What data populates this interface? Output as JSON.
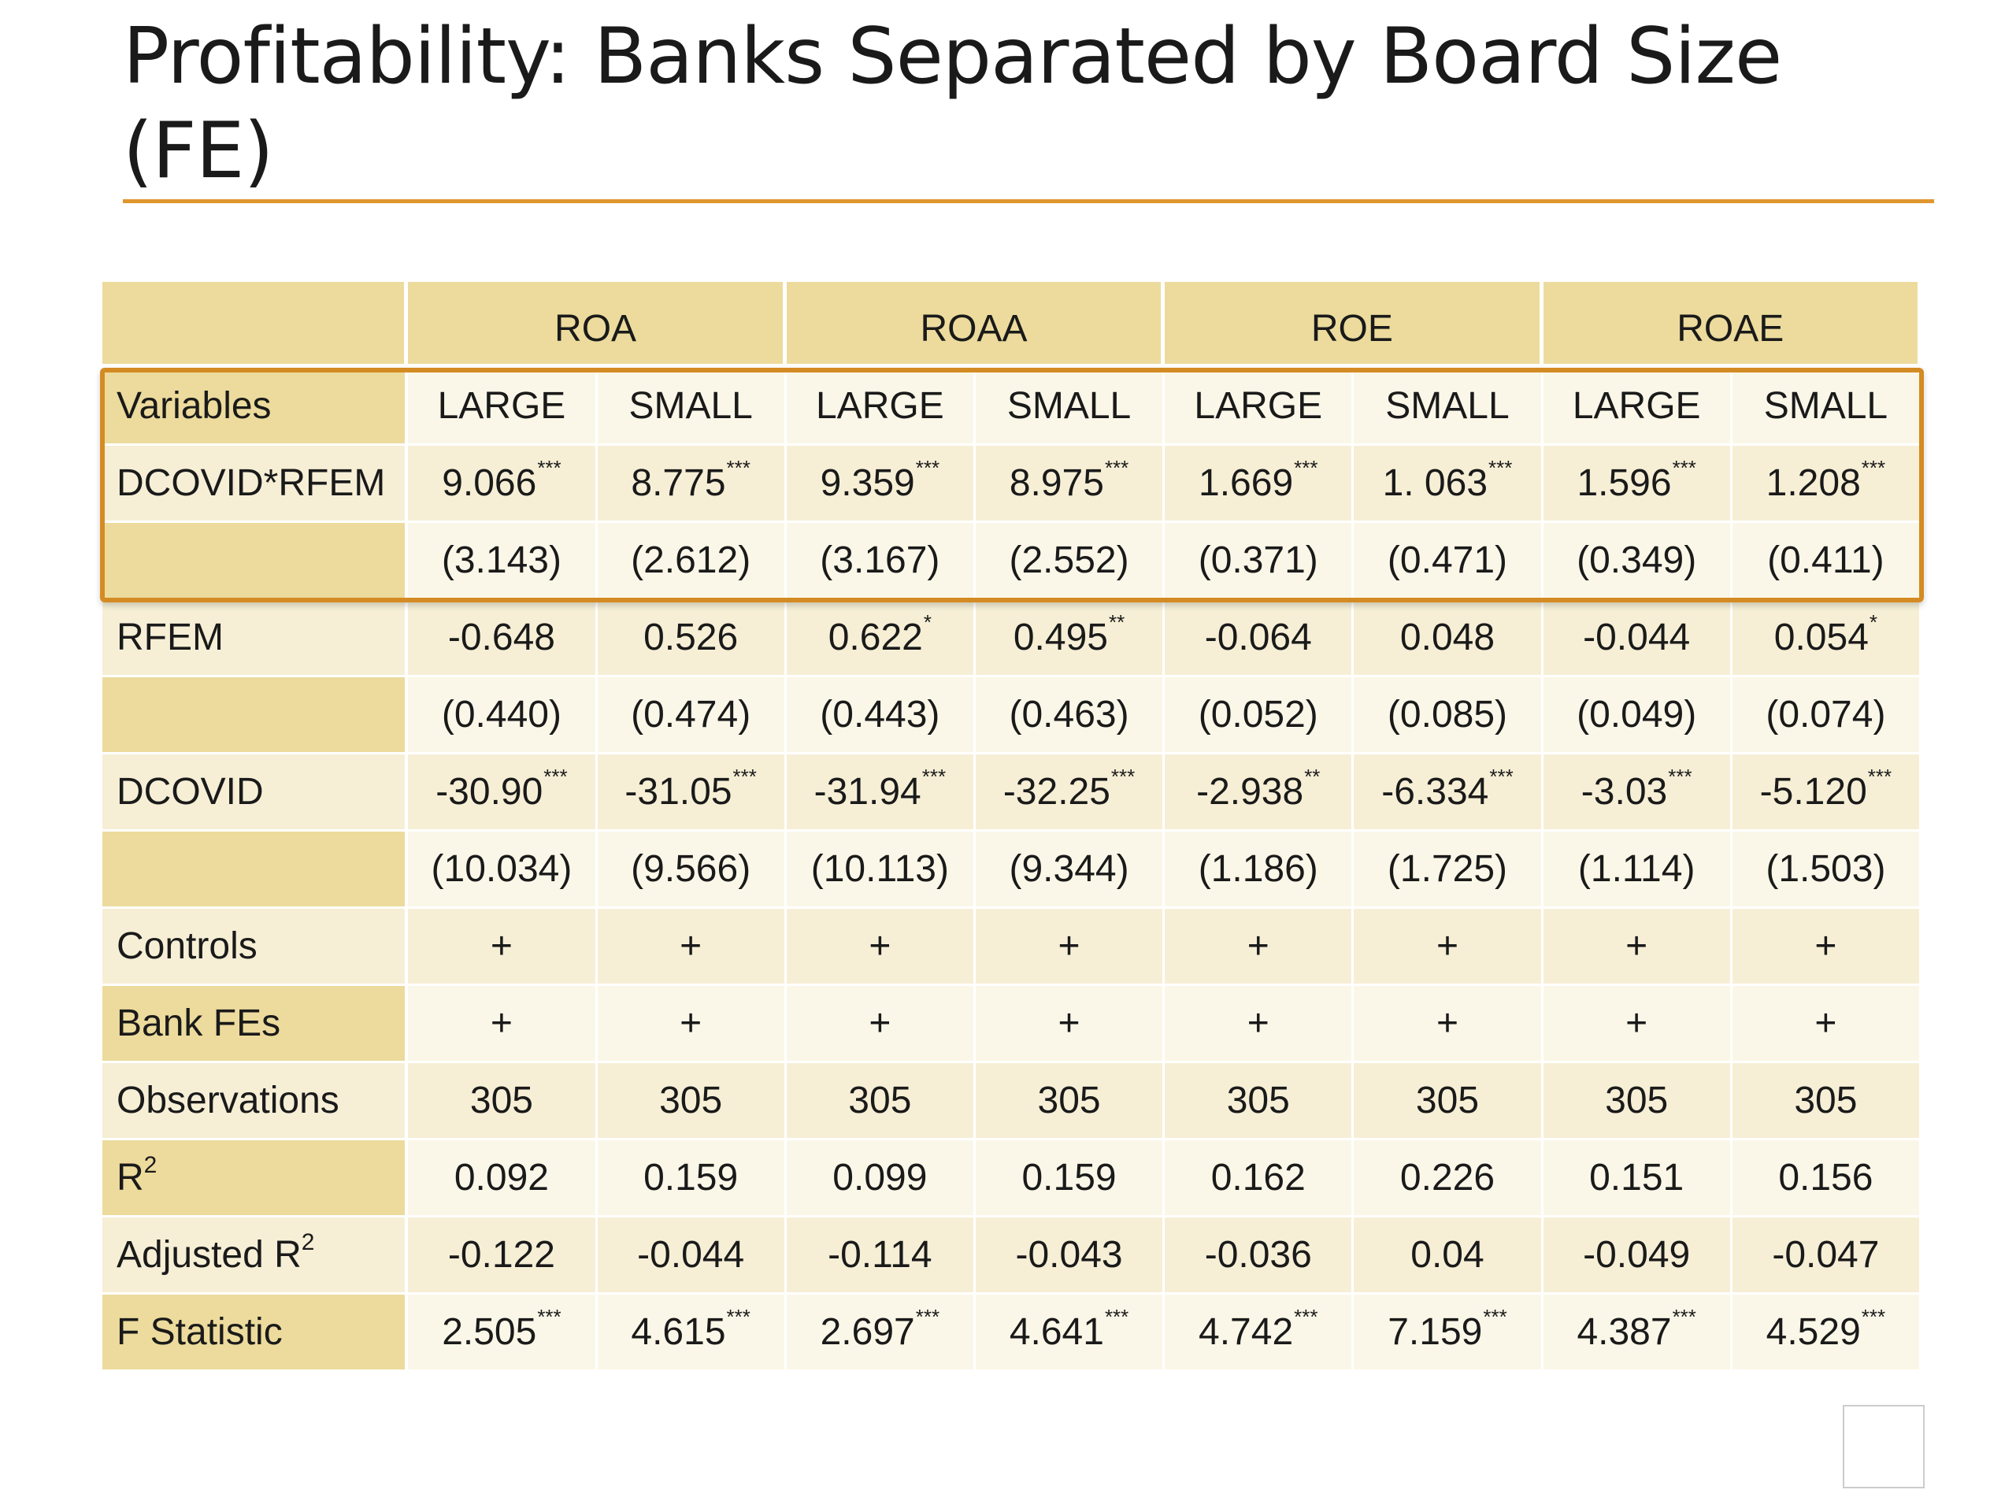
{
  "slide": {
    "title": "Profitability: Banks Separated by Board Size (FE)"
  },
  "table": {
    "groups": [
      "ROA",
      "ROAA",
      "ROE",
      "ROAE"
    ],
    "rows": [
      {
        "label": "Variables",
        "cells": [
          {
            "v": "LARGE"
          },
          {
            "v": "SMALL"
          },
          {
            "v": "LARGE"
          },
          {
            "v": "SMALL"
          },
          {
            "v": "LARGE"
          },
          {
            "v": "SMALL"
          },
          {
            "v": "LARGE"
          },
          {
            "v": "SMALL"
          }
        ]
      },
      {
        "label": "DCOVID*RFEM",
        "cells": [
          {
            "v": "9.066",
            "s": "***"
          },
          {
            "v": "8.775",
            "s": "***"
          },
          {
            "v": "9.359",
            "s": "***"
          },
          {
            "v": "8.975",
            "s": "***"
          },
          {
            "v": "1.669",
            "s": "***"
          },
          {
            "v": "1. 063",
            "s": "***"
          },
          {
            "v": "1.596",
            "s": "***"
          },
          {
            "v": "1.208",
            "s": "***"
          }
        ]
      },
      {
        "label": "",
        "cells": [
          {
            "v": "(3.143)"
          },
          {
            "v": "(2.612)"
          },
          {
            "v": "(3.167)"
          },
          {
            "v": "(2.552)"
          },
          {
            "v": "(0.371)"
          },
          {
            "v": "(0.471)"
          },
          {
            "v": "(0.349)"
          },
          {
            "v": "(0.411)"
          }
        ]
      },
      {
        "label": "RFEM",
        "cells": [
          {
            "v": "-0.648"
          },
          {
            "v": "0.526"
          },
          {
            "v": "0.622",
            "s": "*"
          },
          {
            "v": "0.495",
            "s": "**"
          },
          {
            "v": "-0.064"
          },
          {
            "v": "0.048"
          },
          {
            "v": "-0.044"
          },
          {
            "v": "0.054",
            "s": "*"
          }
        ]
      },
      {
        "label": "",
        "cells": [
          {
            "v": "(0.440)"
          },
          {
            "v": "(0.474)"
          },
          {
            "v": "(0.443)"
          },
          {
            "v": "(0.463)"
          },
          {
            "v": "(0.052)"
          },
          {
            "v": "(0.085)"
          },
          {
            "v": "(0.049)"
          },
          {
            "v": "(0.074)"
          }
        ]
      },
      {
        "label": "DCOVID",
        "cells": [
          {
            "v": "-30.90",
            "s": "***"
          },
          {
            "v": "-31.05",
            "s": "***"
          },
          {
            "v": "-31.94",
            "s": "***"
          },
          {
            "v": "-32.25",
            "s": "***"
          },
          {
            "v": "-2.938",
            "s": "**"
          },
          {
            "v": "-6.334",
            "s": "***"
          },
          {
            "v": "-3.03",
            "s": "***"
          },
          {
            "v": "-5.120",
            "s": "***"
          }
        ]
      },
      {
        "label": "",
        "cells": [
          {
            "v": "(10.034)"
          },
          {
            "v": "(9.566)"
          },
          {
            "v": "(10.113)"
          },
          {
            "v": "(9.344)"
          },
          {
            "v": "(1.186)"
          },
          {
            "v": "(1.725)"
          },
          {
            "v": "(1.114)"
          },
          {
            "v": "(1.503)"
          }
        ]
      },
      {
        "label": "Controls",
        "cells": [
          {
            "v": "+"
          },
          {
            "v": "+"
          },
          {
            "v": "+"
          },
          {
            "v": "+"
          },
          {
            "v": "+"
          },
          {
            "v": "+"
          },
          {
            "v": "+"
          },
          {
            "v": "+"
          }
        ]
      },
      {
        "label": "Bank FEs",
        "cells": [
          {
            "v": "+"
          },
          {
            "v": "+"
          },
          {
            "v": "+"
          },
          {
            "v": "+"
          },
          {
            "v": "+"
          },
          {
            "v": "+"
          },
          {
            "v": "+"
          },
          {
            "v": "+"
          }
        ]
      },
      {
        "label": "Observations",
        "cells": [
          {
            "v": "305"
          },
          {
            "v": "305"
          },
          {
            "v": "305"
          },
          {
            "v": "305"
          },
          {
            "v": "305"
          },
          {
            "v": "305"
          },
          {
            "v": "305"
          },
          {
            "v": "305"
          }
        ]
      },
      {
        "label": "R",
        "label_sup": "2",
        "cells": [
          {
            "v": "0.092"
          },
          {
            "v": "0.159"
          },
          {
            "v": "0.099"
          },
          {
            "v": "0.159"
          },
          {
            "v": "0.162"
          },
          {
            "v": "0.226"
          },
          {
            "v": "0.151"
          },
          {
            "v": "0.156"
          }
        ]
      },
      {
        "label": "Adjusted R",
        "label_sup": "2",
        "cells": [
          {
            "v": "-0.122"
          },
          {
            "v": "-0.044"
          },
          {
            "v": "-0.114"
          },
          {
            "v": "-0.043"
          },
          {
            "v": "-0.036"
          },
          {
            "v": "0.04"
          },
          {
            "v": "-0.049"
          },
          {
            "v": "-0.047"
          }
        ]
      },
      {
        "label": "F Statistic",
        "cells": [
          {
            "v": "2.505",
            "s": "***"
          },
          {
            "v": "4.615",
            "s": "***"
          },
          {
            "v": "2.697",
            "s": "***"
          },
          {
            "v": "4.641",
            "s": "***"
          },
          {
            "v": "4.742",
            "s": "***"
          },
          {
            "v": "7.159",
            "s": "***"
          },
          {
            "v": "4.387",
            "s": "***"
          },
          {
            "v": "4.529",
            "s": "***"
          }
        ]
      }
    ]
  },
  "highlight": {
    "color": "#d48b23"
  },
  "colors": {
    "accent": "#e0962f",
    "header_fill": "#ecdb9c",
    "cell_fill": "#fbf7e8",
    "cell_fill_alt": "#f6efd6"
  }
}
